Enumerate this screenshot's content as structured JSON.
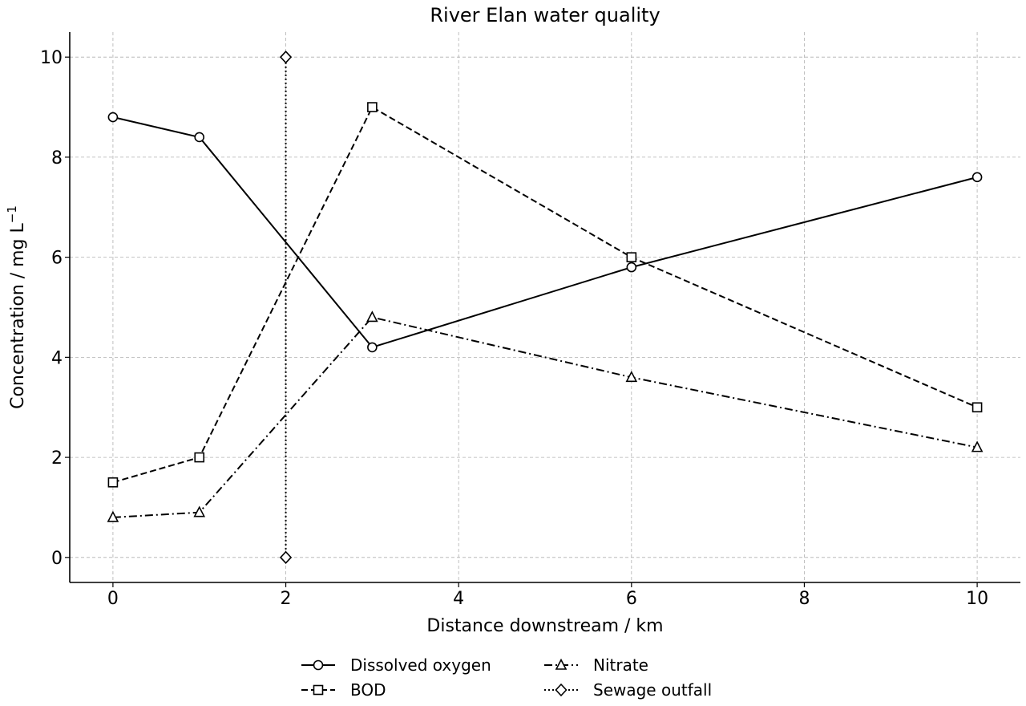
{
  "chart_data": {
    "type": "line",
    "title": "River Elan water quality",
    "xlabel": "Distance downstream / km",
    "ylabel_text": "Concentration / mg L",
    "ylabel_sup": "−1",
    "xlim": [
      -0.5,
      10.5
    ],
    "ylim": [
      -0.5,
      10.5
    ],
    "xticks": [
      0,
      2,
      4,
      6,
      8,
      10
    ],
    "yticks": [
      0,
      2,
      4,
      6,
      8,
      10
    ],
    "grid": true,
    "legend_position": "bottom-center",
    "series": [
      {
        "name": "Dissolved oxygen",
        "marker": "circle",
        "linestyle": "solid",
        "x": [
          0,
          1,
          3,
          6,
          10
        ],
        "y": [
          8.8,
          8.4,
          4.2,
          5.8,
          7.6
        ]
      },
      {
        "name": "BOD",
        "marker": "square",
        "linestyle": "dashed",
        "x": [
          0,
          1,
          3,
          6,
          10
        ],
        "y": [
          1.5,
          2.0,
          9.0,
          6.0,
          3.0
        ]
      },
      {
        "name": "Nitrate",
        "marker": "triangle",
        "linestyle": "dashdot",
        "x": [
          0,
          1,
          3,
          6,
          10
        ],
        "y": [
          0.8,
          0.9,
          4.8,
          3.6,
          2.2
        ]
      },
      {
        "name": "Sewage outfall",
        "marker": "diamond",
        "linestyle": "dotted",
        "x": [
          2,
          2
        ],
        "y": [
          0,
          10
        ]
      }
    ]
  }
}
